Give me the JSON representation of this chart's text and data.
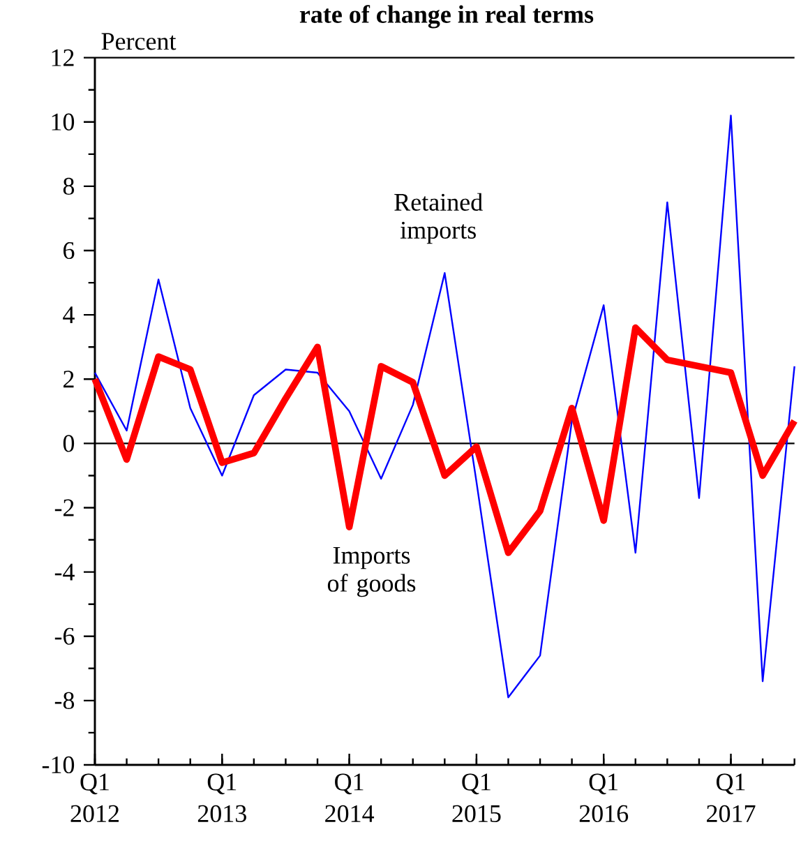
{
  "chart_data": {
    "type": "line",
    "title": "rate of change in real terms",
    "ylabel": "Percent",
    "categories": [
      "Q1 2012",
      null,
      null,
      null,
      "Q1 2013",
      null,
      null,
      null,
      "Q1 2014",
      null,
      null,
      null,
      "Q1 2015",
      null,
      null,
      null,
      "Q1 2016",
      null,
      null,
      null,
      "Q1 2017",
      null,
      null
    ],
    "series": [
      {
        "name": "Retained imports",
        "color": "#0000ff",
        "values": [
          2.2,
          0.4,
          5.1,
          1.1,
          -1.0,
          1.5,
          2.3,
          2.2,
          1.0,
          -1.1,
          1.2,
          5.3,
          -1.2,
          -7.9,
          -6.6,
          0.7,
          4.3,
          -3.4,
          7.5,
          -1.7,
          10.2,
          -7.4,
          2.4
        ]
      },
      {
        "name": "Imports of goods",
        "color": "#ff0000",
        "values": [
          2.0,
          -0.5,
          2.7,
          2.3,
          -0.6,
          -0.3,
          1.4,
          3.0,
          -2.6,
          2.4,
          1.9,
          -1.0,
          -0.1,
          -3.4,
          -2.1,
          1.1,
          -2.4,
          3.6,
          2.6,
          2.4,
          2.2,
          -1.0,
          0.7
        ]
      }
    ],
    "ylim": [
      -10,
      12
    ],
    "yticks": [
      -10,
      -8,
      -6,
      -4,
      -2,
      0,
      2,
      4,
      6,
      8,
      10,
      12
    ],
    "ref_lines": [
      {
        "axis": "y",
        "value": 0,
        "color": "#000000"
      }
    ],
    "grid": false,
    "legend": false,
    "marker": "none",
    "line_style": "solid"
  }
}
